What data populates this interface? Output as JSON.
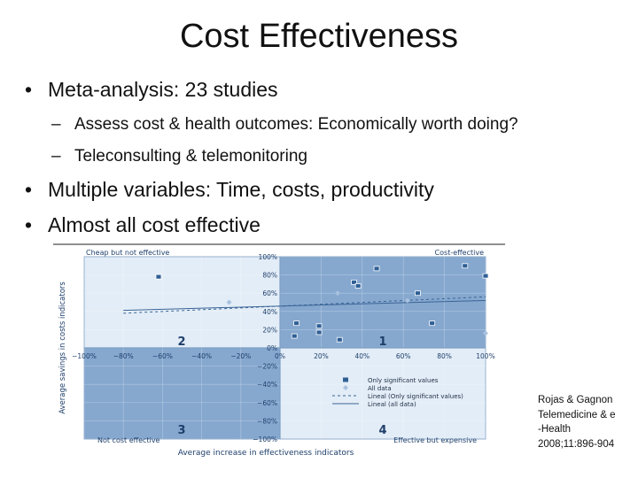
{
  "slide": {
    "title": "Cost Effectiveness",
    "bullets": [
      {
        "text": "Meta-analysis: 23 studies",
        "sub": [
          "Assess cost & health outcomes: Economically worth doing?",
          "Teleconsulting & telemonitoring"
        ]
      },
      {
        "text": "Multiple variables: Time, costs, productivity"
      },
      {
        "text": "Almost all cost effective"
      }
    ],
    "bullet_glyph": "•",
    "dash_glyph": "–",
    "citation": "Rojas & Gagnon\nTelemedicine & e\n-Health\n2008;11:896-904"
  },
  "chart_data": {
    "type": "scatter",
    "xlabel": "Average increase in effectiveness indicators",
    "ylabel": "Average savings in costs indicators",
    "xlim": [
      -100,
      100
    ],
    "ylim": [
      -100,
      100
    ],
    "x_ticks": [
      "−100%",
      "−80%",
      "−60%",
      "−40%",
      "−20%",
      "0%",
      "20%",
      "40%",
      "60%",
      "80%",
      "100%"
    ],
    "y_ticks": [
      "100%",
      "80%",
      "60%",
      "40%",
      "20%",
      "0%",
      "−20%",
      "−40%",
      "−60%",
      "−80%",
      "−100%"
    ],
    "quadrants": [
      {
        "number": "1",
        "label": "Cost-effective"
      },
      {
        "number": "2",
        "label": "Cheap but not effective"
      },
      {
        "number": "3",
        "label": "Not cost effective"
      },
      {
        "number": "4",
        "label": "Effective but expensive"
      }
    ],
    "series": [
      {
        "name": "Only significant values",
        "points": [
          [
            -62,
            78
          ],
          [
            8,
            27
          ],
          [
            19,
            24
          ],
          [
            19,
            17
          ],
          [
            36,
            72
          ],
          [
            38,
            68
          ],
          [
            47,
            87
          ],
          [
            67,
            60
          ],
          [
            74,
            27
          ],
          [
            90,
            90
          ],
          [
            100,
            79
          ],
          [
            7,
            13
          ],
          [
            29,
            9
          ]
        ]
      },
      {
        "name": "All data",
        "points": [
          [
            -26,
            50
          ],
          [
            28,
            60
          ],
          [
            62,
            52
          ],
          [
            100,
            16
          ]
        ]
      }
    ],
    "trendlines": [
      {
        "name": "Lineal (Only significant values)",
        "intercept": 46,
        "slope": 0.1
      },
      {
        "name": "Lineal (all data)",
        "intercept": 46,
        "slope": 0.06
      }
    ],
    "colors": {
      "q_light": "#e3edf7",
      "q_dark": "#86a8cf",
      "axis": "#7f9fc4",
      "marker": "#2f5f96",
      "marker_light": "#a8c2df",
      "label": "#1e3f6b",
      "trend": "#3a6496"
    }
  }
}
